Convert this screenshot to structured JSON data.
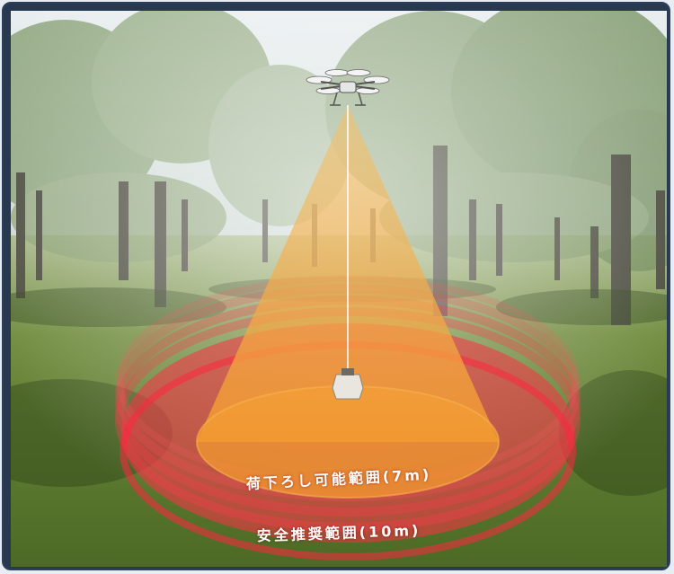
{
  "scene": {
    "description_icon": "drone-icon",
    "payload_icon": "package-icon"
  },
  "labels": {
    "unload_range": "荷下ろし可能範囲(7m)",
    "safety_range": "安全推奨範囲(10m)"
  },
  "colors": {
    "frame": "#2b3f5c",
    "safety_ring": "#ff2f45",
    "unload_cone": "#f6a13a",
    "sky": "#dfe7e9",
    "grass": "#5f7a32"
  }
}
